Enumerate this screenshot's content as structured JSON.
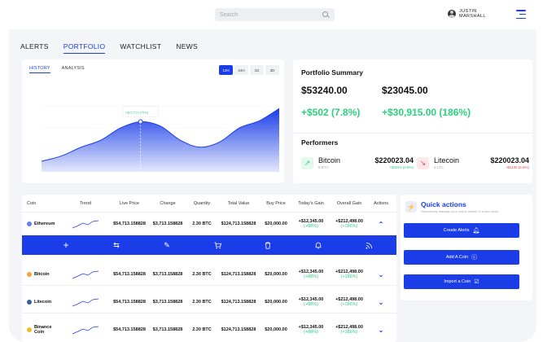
{
  "header": {
    "search_placeholder": "Search",
    "user_name_line1": "JUSTIN",
    "user_name_line2": "MARSHALL"
  },
  "nav": {
    "tabs": [
      {
        "label": "ALERTS"
      },
      {
        "label": "PORTFOLIO",
        "active": true
      },
      {
        "label": "WATCHLIST"
      },
      {
        "label": "NEWS"
      }
    ]
  },
  "chart_card": {
    "tabs": [
      {
        "label": "HISTORY",
        "active": true
      },
      {
        "label": "ANALYSIS"
      }
    ],
    "ranges": [
      {
        "label": "12H",
        "active": true
      },
      {
        "label": "24H"
      },
      {
        "label": "1D"
      },
      {
        "label": "3D"
      }
    ],
    "tooltip_label": "",
    "tooltip_value": "+$22,713 (75%)"
  },
  "chart_data": {
    "type": "area",
    "x": [
      0,
      1,
      2,
      3,
      4,
      5,
      6,
      7,
      8,
      9,
      10,
      11,
      12
    ],
    "values": [
      12,
      18,
      28,
      36,
      50,
      57,
      52,
      36,
      28,
      34,
      50,
      58,
      72
    ],
    "ylim": [
      0,
      100
    ],
    "highlight_index": 5,
    "color": "#1a3de8"
  },
  "summary": {
    "title": "Portfolio Summary",
    "value1": "$53240.00",
    "value2": "$23045.00",
    "gain1": "+$502 (7.8%)",
    "gain2": "+$30,915.00 (186%)",
    "performers_title": "Performers",
    "performers": [
      {
        "name": "Bitcoin",
        "symbol": "5 BTC",
        "value": "$220023.04",
        "change": "+$2010 (9.8%)",
        "direction": "up",
        "icon": "arrow-up-right-icon"
      },
      {
        "name": "Litecoin",
        "symbol": "4 LTC",
        "value": "$220023.04",
        "change": "-$1240 (6.8%)",
        "direction": "down",
        "icon": "arrow-down-right-icon"
      }
    ]
  },
  "table": {
    "columns": [
      "Coin",
      "Trend",
      "Live Price",
      "Change",
      "Quantity",
      "Total Value",
      "Buy Price",
      "Today's Gain",
      "Overall Gain",
      "Actions"
    ],
    "rows": [
      {
        "coin": "Ethereum",
        "icon_color": "#627eea",
        "live_price": "$54,713.158828",
        "change": "$3,713.158828",
        "quantity": "2.30 BTC",
        "total_value": "$124,713.158828",
        "buy_price": "$20,000.00",
        "today_gain": "+$12,345.00",
        "today_pct": "(+88%)",
        "overall_gain": "+$212,498.00",
        "overall_pct": "(+186%)",
        "expanded": true
      },
      {
        "coin": "Bitcoin",
        "icon_color": "#f7a23b",
        "live_price": "$54,713.158828",
        "change": "$3,713.158828",
        "quantity": "2.30 BTC",
        "total_value": "$124,713.158828",
        "buy_price": "$20,000.00",
        "today_gain": "+$12,345.00",
        "today_pct": "(+88%)",
        "overall_gain": "+$212,498.00",
        "overall_pct": "(+186%)",
        "expanded": false
      },
      {
        "coin": "Litecoin",
        "icon_color": "#345d9d",
        "live_price": "$54,713.158828",
        "change": "$3,713.158828",
        "quantity": "2.30 BTC",
        "total_value": "$124,713.158828",
        "buy_price": "$20,000.00",
        "today_gain": "+$12,345.00",
        "today_pct": "(+88%)",
        "overall_gain": "+$212,498.00",
        "overall_pct": "(+186%)",
        "expanded": false
      },
      {
        "coin": "Binance Coin",
        "icon_color": "#f3ba2f",
        "live_price": "$54,713.158828",
        "change": "$3,713.158828",
        "quantity": "2.30 BTC",
        "total_value": "$124,713.158828",
        "buy_price": "$20,000.00",
        "today_gain": "+$12,345.00",
        "today_pct": "(+88%)",
        "overall_gain": "+$212,498.00",
        "overall_pct": "(+186%)",
        "expanded": false
      }
    ],
    "action_icons": [
      "plus-icon",
      "transfer-icon",
      "edit-icon",
      "cart-icon",
      "trash-icon",
      "bell-icon",
      "feed-icon"
    ]
  },
  "quick_actions": {
    "title": "Quick actions",
    "subtitle": "Seamlessly manage your crypto wealth in a few clicks",
    "buttons": [
      {
        "label": "Create Alerts",
        "icon": "bell-icon"
      },
      {
        "label": "Add A Coin",
        "icon": "coin-icon"
      },
      {
        "label": "Import a Coin",
        "icon": "import-icon"
      }
    ]
  },
  "colors": {
    "accent": "#1a3de8",
    "positive": "#2ecf7d",
    "negative": "#e8485c",
    "panel": "#f4f5f8"
  }
}
